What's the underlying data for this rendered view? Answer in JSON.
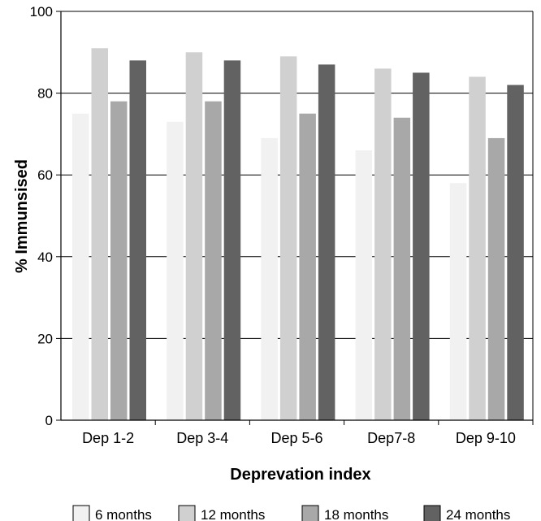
{
  "chart_data": {
    "type": "bar",
    "categories": [
      "Dep 1-2",
      "Dep 3-4",
      "Dep 5-6",
      "Dep7-8",
      "Dep 9-10"
    ],
    "series": [
      {
        "name": "6 months",
        "values": [
          75,
          73,
          69,
          66,
          58
        ],
        "color": "#f1f1f1"
      },
      {
        "name": "12 months",
        "values": [
          91,
          90,
          89,
          86,
          84
        ],
        "color": "#d0d0d0"
      },
      {
        "name": "18 months",
        "values": [
          78,
          78,
          75,
          74,
          69
        ],
        "color": "#a8a8a8"
      },
      {
        "name": "24 months",
        "values": [
          88,
          88,
          87,
          85,
          82
        ],
        "color": "#626262"
      }
    ],
    "xlabel": "Deprevation index",
    "ylabel": "% Immunsised",
    "ylim": [
      0,
      100
    ],
    "yticks": [
      "0",
      "20",
      "40",
      "60",
      "80",
      "100"
    ],
    "grid": true,
    "legend_position": "bottom"
  }
}
